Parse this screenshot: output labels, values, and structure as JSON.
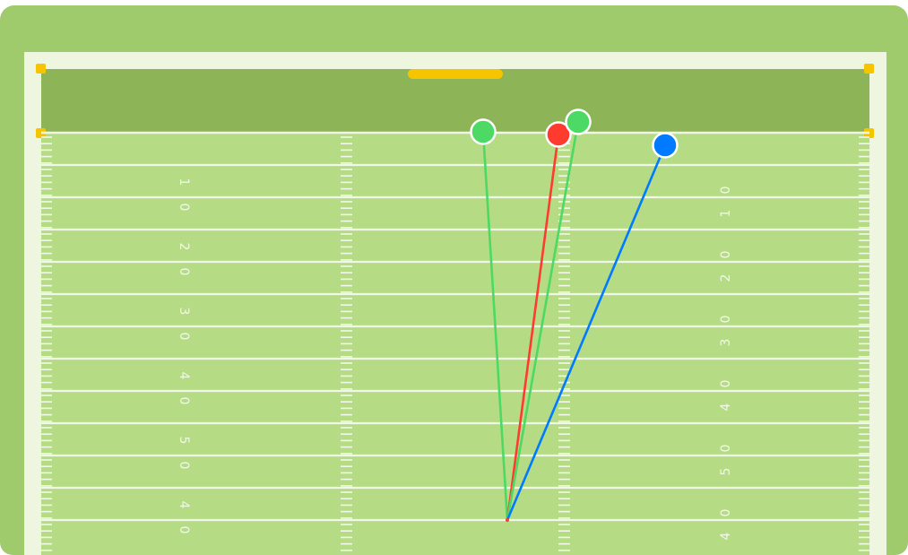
{
  "colors": {
    "outer_grass": "#a0cb6d",
    "boundary": "#eef6e0",
    "endzone": "#8db457",
    "field": "#b5dc85",
    "goalpost": "#f7c400",
    "lines": "#f2f8e8",
    "route_green": "#4cd964",
    "route_red": "#ff3b30",
    "route_blue": "#007aff"
  },
  "field": {
    "left_numbers": [
      "1",
      "0",
      "2",
      "0",
      "3",
      "0",
      "4",
      "0",
      "5",
      "0",
      "4",
      "0"
    ],
    "right_numbers": [
      "0",
      "1",
      "0",
      "2",
      "0",
      "3",
      "0",
      "4",
      "0",
      "5",
      "0",
      "4"
    ]
  },
  "origin": {
    "icon": "ball-snap-point"
  },
  "routes": [
    {
      "name": "green-route-1",
      "color": "#4cd964",
      "end_icon": "receiver-marker"
    },
    {
      "name": "red-route",
      "color": "#ff3b30",
      "end_icon": "receiver-marker"
    },
    {
      "name": "green-route-2",
      "color": "#4cd964",
      "end_icon": "receiver-marker"
    },
    {
      "name": "blue-route",
      "color": "#007aff",
      "end_icon": "receiver-marker"
    }
  ]
}
